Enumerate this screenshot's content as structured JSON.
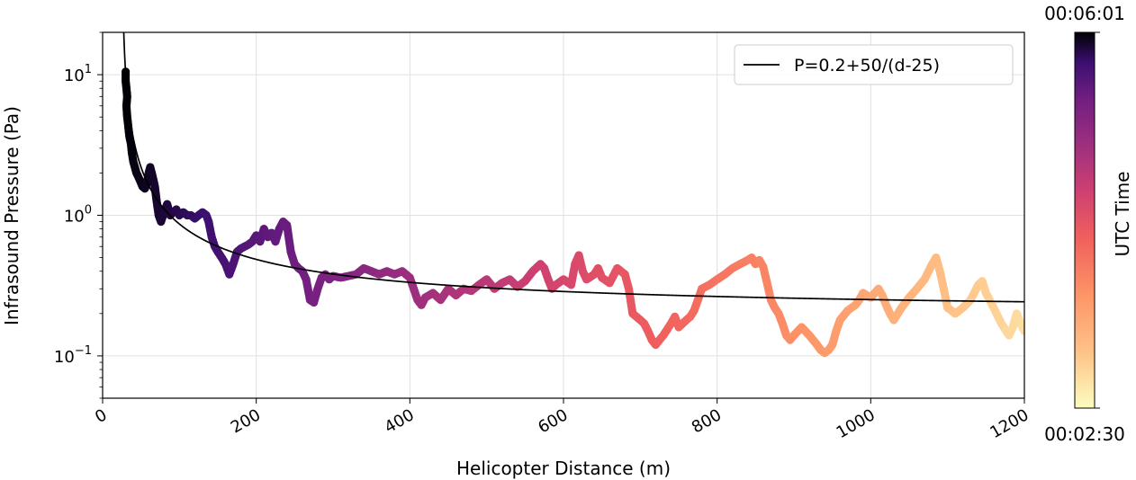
{
  "chart_data": {
    "type": "scatter",
    "xlabel": "Helicopter Distance (m)",
    "ylabel": "Infrasound Pressure (Pa)",
    "xlim": [
      0,
      1200
    ],
    "ylim": [
      0.05,
      20
    ],
    "yscale": "log",
    "grid": true,
    "x_ticks": [
      0,
      200,
      400,
      600,
      800,
      1000,
      1200
    ],
    "x_tick_labels": [
      "0",
      "200",
      "400",
      "600",
      "800",
      "1000",
      "1200"
    ],
    "y_ticks": [
      0.1,
      1,
      10
    ],
    "y_tick_labels": [
      {
        "base": "10",
        "exp": "−1"
      },
      {
        "base": "10",
        "exp": "0"
      },
      {
        "base": "10",
        "exp": "1"
      }
    ],
    "legend": {
      "placement": "top-right",
      "entries": [
        "P=0.2+50/(d-25)"
      ]
    },
    "fit": {
      "label": "P=0.2+50/(d-25)",
      "a": 0.2,
      "b": 50,
      "c": 25,
      "color": "#000000"
    },
    "colorbar": {
      "label": "UTC Time",
      "top_label": "00:06:01",
      "bottom_label": "00:02:30",
      "colormap": "magma_r"
    },
    "series": [
      {
        "points": [
          [
            30,
            10.5
          ],
          [
            30,
            9.0
          ],
          [
            31,
            8.0
          ],
          [
            32,
            7.0
          ],
          [
            31,
            6.0
          ],
          [
            32,
            5.0
          ],
          [
            33,
            4.5
          ],
          [
            34,
            4.0
          ],
          [
            35,
            3.6
          ],
          [
            37,
            3.2
          ],
          [
            38,
            2.8
          ],
          [
            40,
            2.4
          ],
          [
            42,
            2.2
          ],
          [
            44,
            2.0
          ],
          [
            46,
            1.9
          ],
          [
            48,
            1.8
          ],
          [
            50,
            1.7
          ],
          [
            52,
            1.6
          ],
          [
            55,
            1.55
          ],
          [
            58,
            1.7
          ],
          [
            60,
            2.0
          ],
          [
            62,
            2.2
          ],
          [
            65,
            1.9
          ],
          [
            68,
            1.6
          ],
          [
            70,
            1.3
          ],
          [
            73,
            1.0
          ],
          [
            76,
            0.9
          ],
          [
            80,
            1.05
          ],
          [
            84,
            1.2
          ],
          [
            88,
            1.0
          ],
          [
            92,
            1.05
          ],
          [
            96,
            1.1
          ],
          [
            100,
            1.0
          ],
          [
            105,
            1.05
          ],
          [
            110,
            1.0
          ],
          [
            115,
            1.0
          ],
          [
            120,
            0.95
          ],
          [
            125,
            1.0
          ],
          [
            130,
            1.05
          ],
          [
            135,
            1.0
          ],
          [
            138,
            0.9
          ],
          [
            142,
            0.7
          ],
          [
            146,
            0.6
          ],
          [
            150,
            0.55
          ],
          [
            155,
            0.5
          ],
          [
            160,
            0.45
          ],
          [
            165,
            0.38
          ],
          [
            170,
            0.45
          ],
          [
            175,
            0.55
          ],
          [
            180,
            0.58
          ],
          [
            185,
            0.6
          ],
          [
            190,
            0.62
          ],
          [
            195,
            0.65
          ],
          [
            200,
            0.72
          ],
          [
            205,
            0.65
          ],
          [
            210,
            0.8
          ],
          [
            215,
            0.7
          ],
          [
            220,
            0.75
          ],
          [
            225,
            0.65
          ],
          [
            230,
            0.8
          ],
          [
            235,
            0.9
          ],
          [
            240,
            0.85
          ],
          [
            245,
            0.55
          ],
          [
            250,
            0.45
          ],
          [
            255,
            0.42
          ],
          [
            260,
            0.4
          ],
          [
            265,
            0.35
          ],
          [
            270,
            0.25
          ],
          [
            275,
            0.24
          ],
          [
            280,
            0.3
          ],
          [
            285,
            0.36
          ],
          [
            290,
            0.38
          ],
          [
            295,
            0.35
          ],
          [
            300,
            0.37
          ],
          [
            310,
            0.36
          ],
          [
            320,
            0.37
          ],
          [
            330,
            0.38
          ],
          [
            340,
            0.42
          ],
          [
            350,
            0.4
          ],
          [
            360,
            0.38
          ],
          [
            370,
            0.4
          ],
          [
            380,
            0.38
          ],
          [
            390,
            0.4
          ],
          [
            400,
            0.36
          ],
          [
            405,
            0.3
          ],
          [
            410,
            0.25
          ],
          [
            415,
            0.23
          ],
          [
            420,
            0.26
          ],
          [
            430,
            0.28
          ],
          [
            440,
            0.25
          ],
          [
            450,
            0.3
          ],
          [
            460,
            0.27
          ],
          [
            470,
            0.3
          ],
          [
            480,
            0.29
          ],
          [
            490,
            0.32
          ],
          [
            500,
            0.35
          ],
          [
            510,
            0.3
          ],
          [
            520,
            0.33
          ],
          [
            530,
            0.35
          ],
          [
            540,
            0.31
          ],
          [
            550,
            0.34
          ],
          [
            560,
            0.4
          ],
          [
            570,
            0.45
          ],
          [
            575,
            0.42
          ],
          [
            580,
            0.35
          ],
          [
            585,
            0.3
          ],
          [
            590,
            0.32
          ],
          [
            600,
            0.35
          ],
          [
            610,
            0.32
          ],
          [
            615,
            0.45
          ],
          [
            620,
            0.52
          ],
          [
            625,
            0.4
          ],
          [
            630,
            0.35
          ],
          [
            640,
            0.38
          ],
          [
            645,
            0.42
          ],
          [
            650,
            0.36
          ],
          [
            660,
            0.33
          ],
          [
            670,
            0.42
          ],
          [
            680,
            0.38
          ],
          [
            685,
            0.3
          ],
          [
            690,
            0.2
          ],
          [
            700,
            0.18
          ],
          [
            705,
            0.17
          ],
          [
            710,
            0.15
          ],
          [
            715,
            0.13
          ],
          [
            720,
            0.12
          ],
          [
            725,
            0.13
          ],
          [
            730,
            0.14
          ],
          [
            740,
            0.17
          ],
          [
            745,
            0.19
          ],
          [
            750,
            0.16
          ],
          [
            760,
            0.18
          ],
          [
            765,
            0.19
          ],
          [
            770,
            0.21
          ],
          [
            775,
            0.25
          ],
          [
            780,
            0.3
          ],
          [
            790,
            0.32
          ],
          [
            800,
            0.35
          ],
          [
            810,
            0.38
          ],
          [
            820,
            0.42
          ],
          [
            830,
            0.45
          ],
          [
            840,
            0.48
          ],
          [
            845,
            0.5
          ],
          [
            850,
            0.45
          ],
          [
            855,
            0.48
          ],
          [
            860,
            0.43
          ],
          [
            865,
            0.33
          ],
          [
            870,
            0.25
          ],
          [
            875,
            0.22
          ],
          [
            880,
            0.2
          ],
          [
            885,
            0.17
          ],
          [
            890,
            0.14
          ],
          [
            895,
            0.13
          ],
          [
            900,
            0.14
          ],
          [
            910,
            0.16
          ],
          [
            920,
            0.14
          ],
          [
            930,
            0.12
          ],
          [
            935,
            0.11
          ],
          [
            940,
            0.105
          ],
          [
            945,
            0.11
          ],
          [
            950,
            0.12
          ],
          [
            955,
            0.15
          ],
          [
            960,
            0.18
          ],
          [
            970,
            0.21
          ],
          [
            980,
            0.23
          ],
          [
            985,
            0.25
          ],
          [
            990,
            0.28
          ],
          [
            1000,
            0.26
          ],
          [
            1010,
            0.3
          ],
          [
            1015,
            0.27
          ],
          [
            1020,
            0.23
          ],
          [
            1025,
            0.2
          ],
          [
            1030,
            0.18
          ],
          [
            1040,
            0.22
          ],
          [
            1050,
            0.26
          ],
          [
            1060,
            0.3
          ],
          [
            1070,
            0.35
          ],
          [
            1080,
            0.45
          ],
          [
            1085,
            0.5
          ],
          [
            1090,
            0.4
          ],
          [
            1095,
            0.3
          ],
          [
            1100,
            0.22
          ],
          [
            1110,
            0.2
          ],
          [
            1120,
            0.22
          ],
          [
            1130,
            0.25
          ],
          [
            1140,
            0.32
          ],
          [
            1145,
            0.34
          ],
          [
            1150,
            0.28
          ],
          [
            1160,
            0.22
          ],
          [
            1170,
            0.17
          ],
          [
            1180,
            0.14
          ],
          [
            1185,
            0.16
          ],
          [
            1190,
            0.2
          ],
          [
            1195,
            0.17
          ],
          [
            1200,
            0.15
          ]
        ]
      }
    ]
  }
}
